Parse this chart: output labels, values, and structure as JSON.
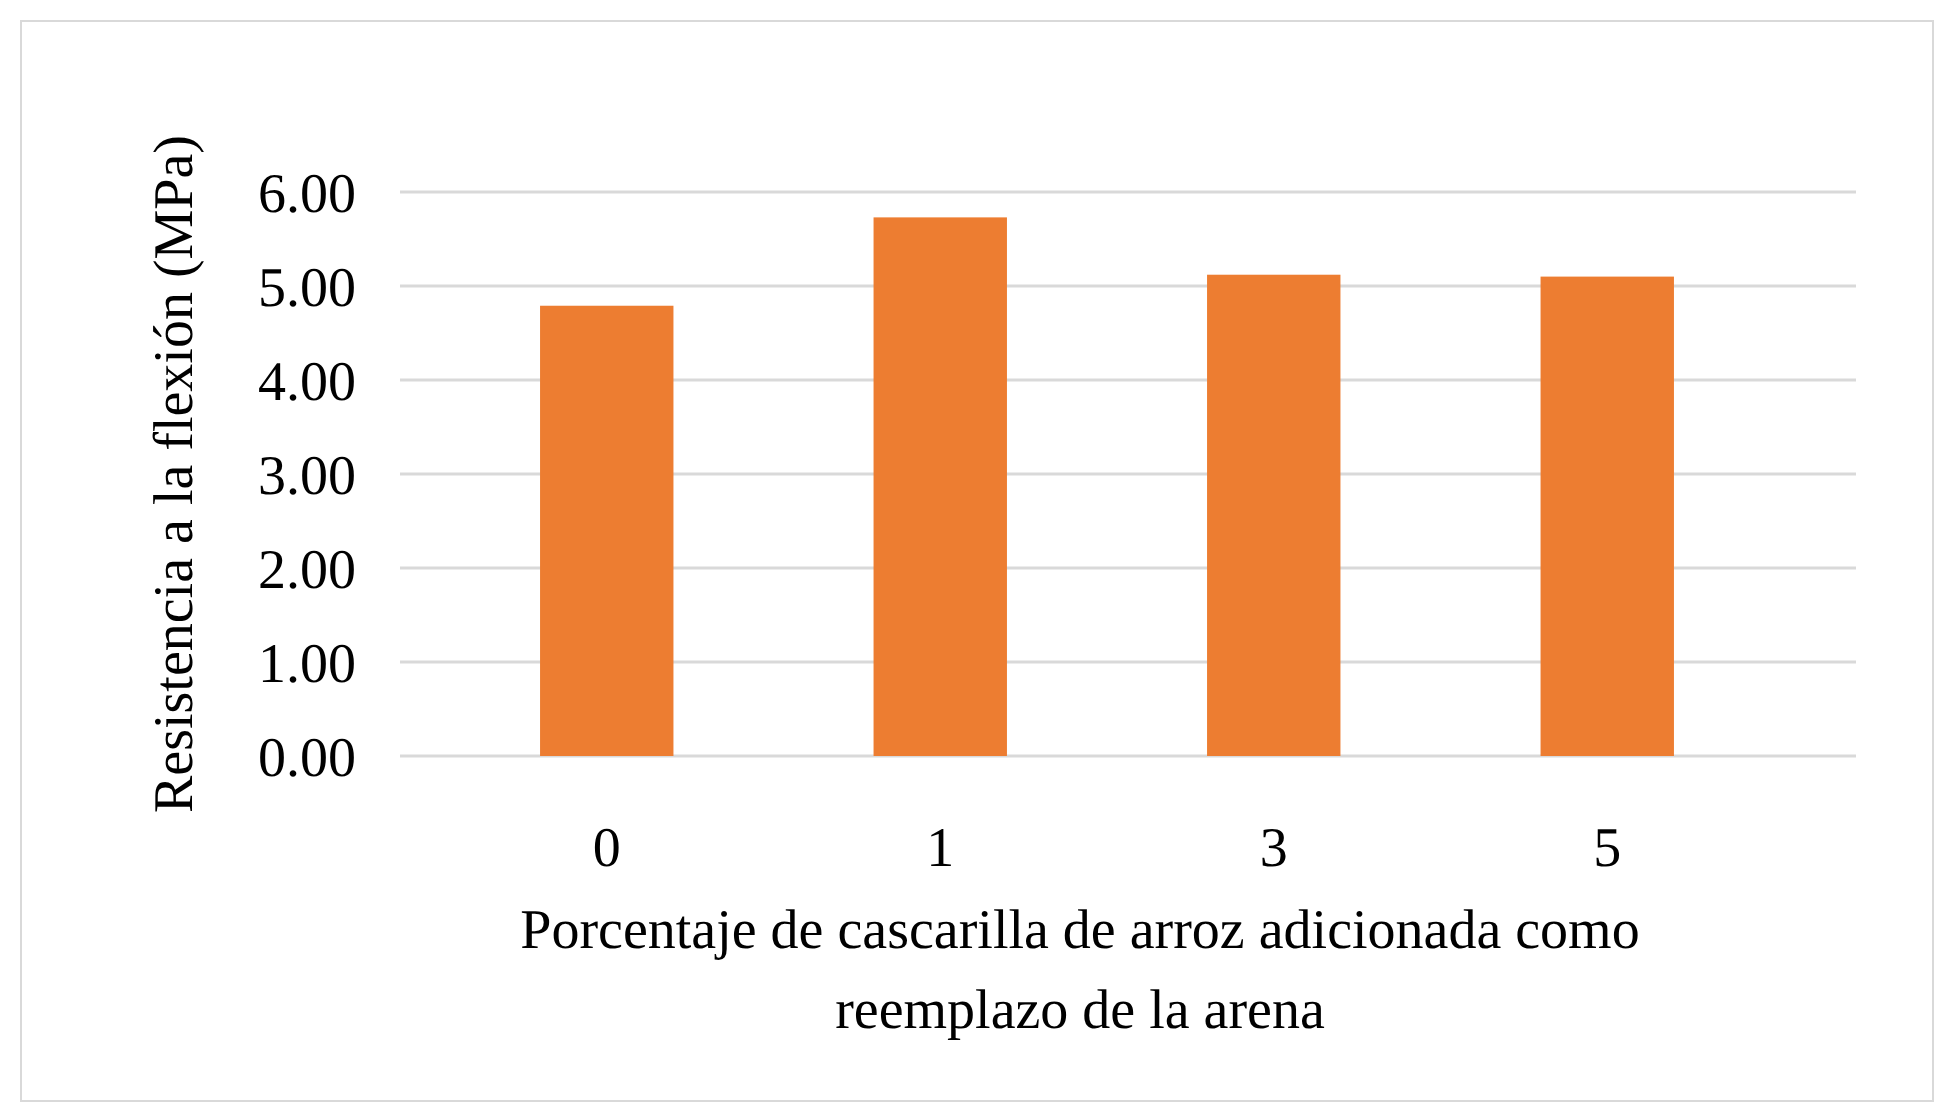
{
  "chart_data": {
    "type": "bar",
    "categories": [
      "0",
      "1",
      "3",
      "5"
    ],
    "values": [
      4.79,
      5.73,
      5.12,
      5.1
    ],
    "color": "#ed7d31",
    "ylim": [
      0,
      6
    ],
    "yticks": [
      {
        "value": 0,
        "label": "0.00"
      },
      {
        "value": 1,
        "label": "1.00"
      },
      {
        "value": 2,
        "label": "2.00"
      },
      {
        "value": 3,
        "label": "3.00"
      },
      {
        "value": 4,
        "label": "4.00"
      },
      {
        "value": 5,
        "label": "5.00"
      },
      {
        "value": 6,
        "label": "6.00"
      }
    ],
    "grid": "y",
    "xlabel": "Porcentaje de cascarilla de arroz adicionada como reemplazo de la arena",
    "ylabel": "Resistencia a la flexión (MPa)"
  }
}
